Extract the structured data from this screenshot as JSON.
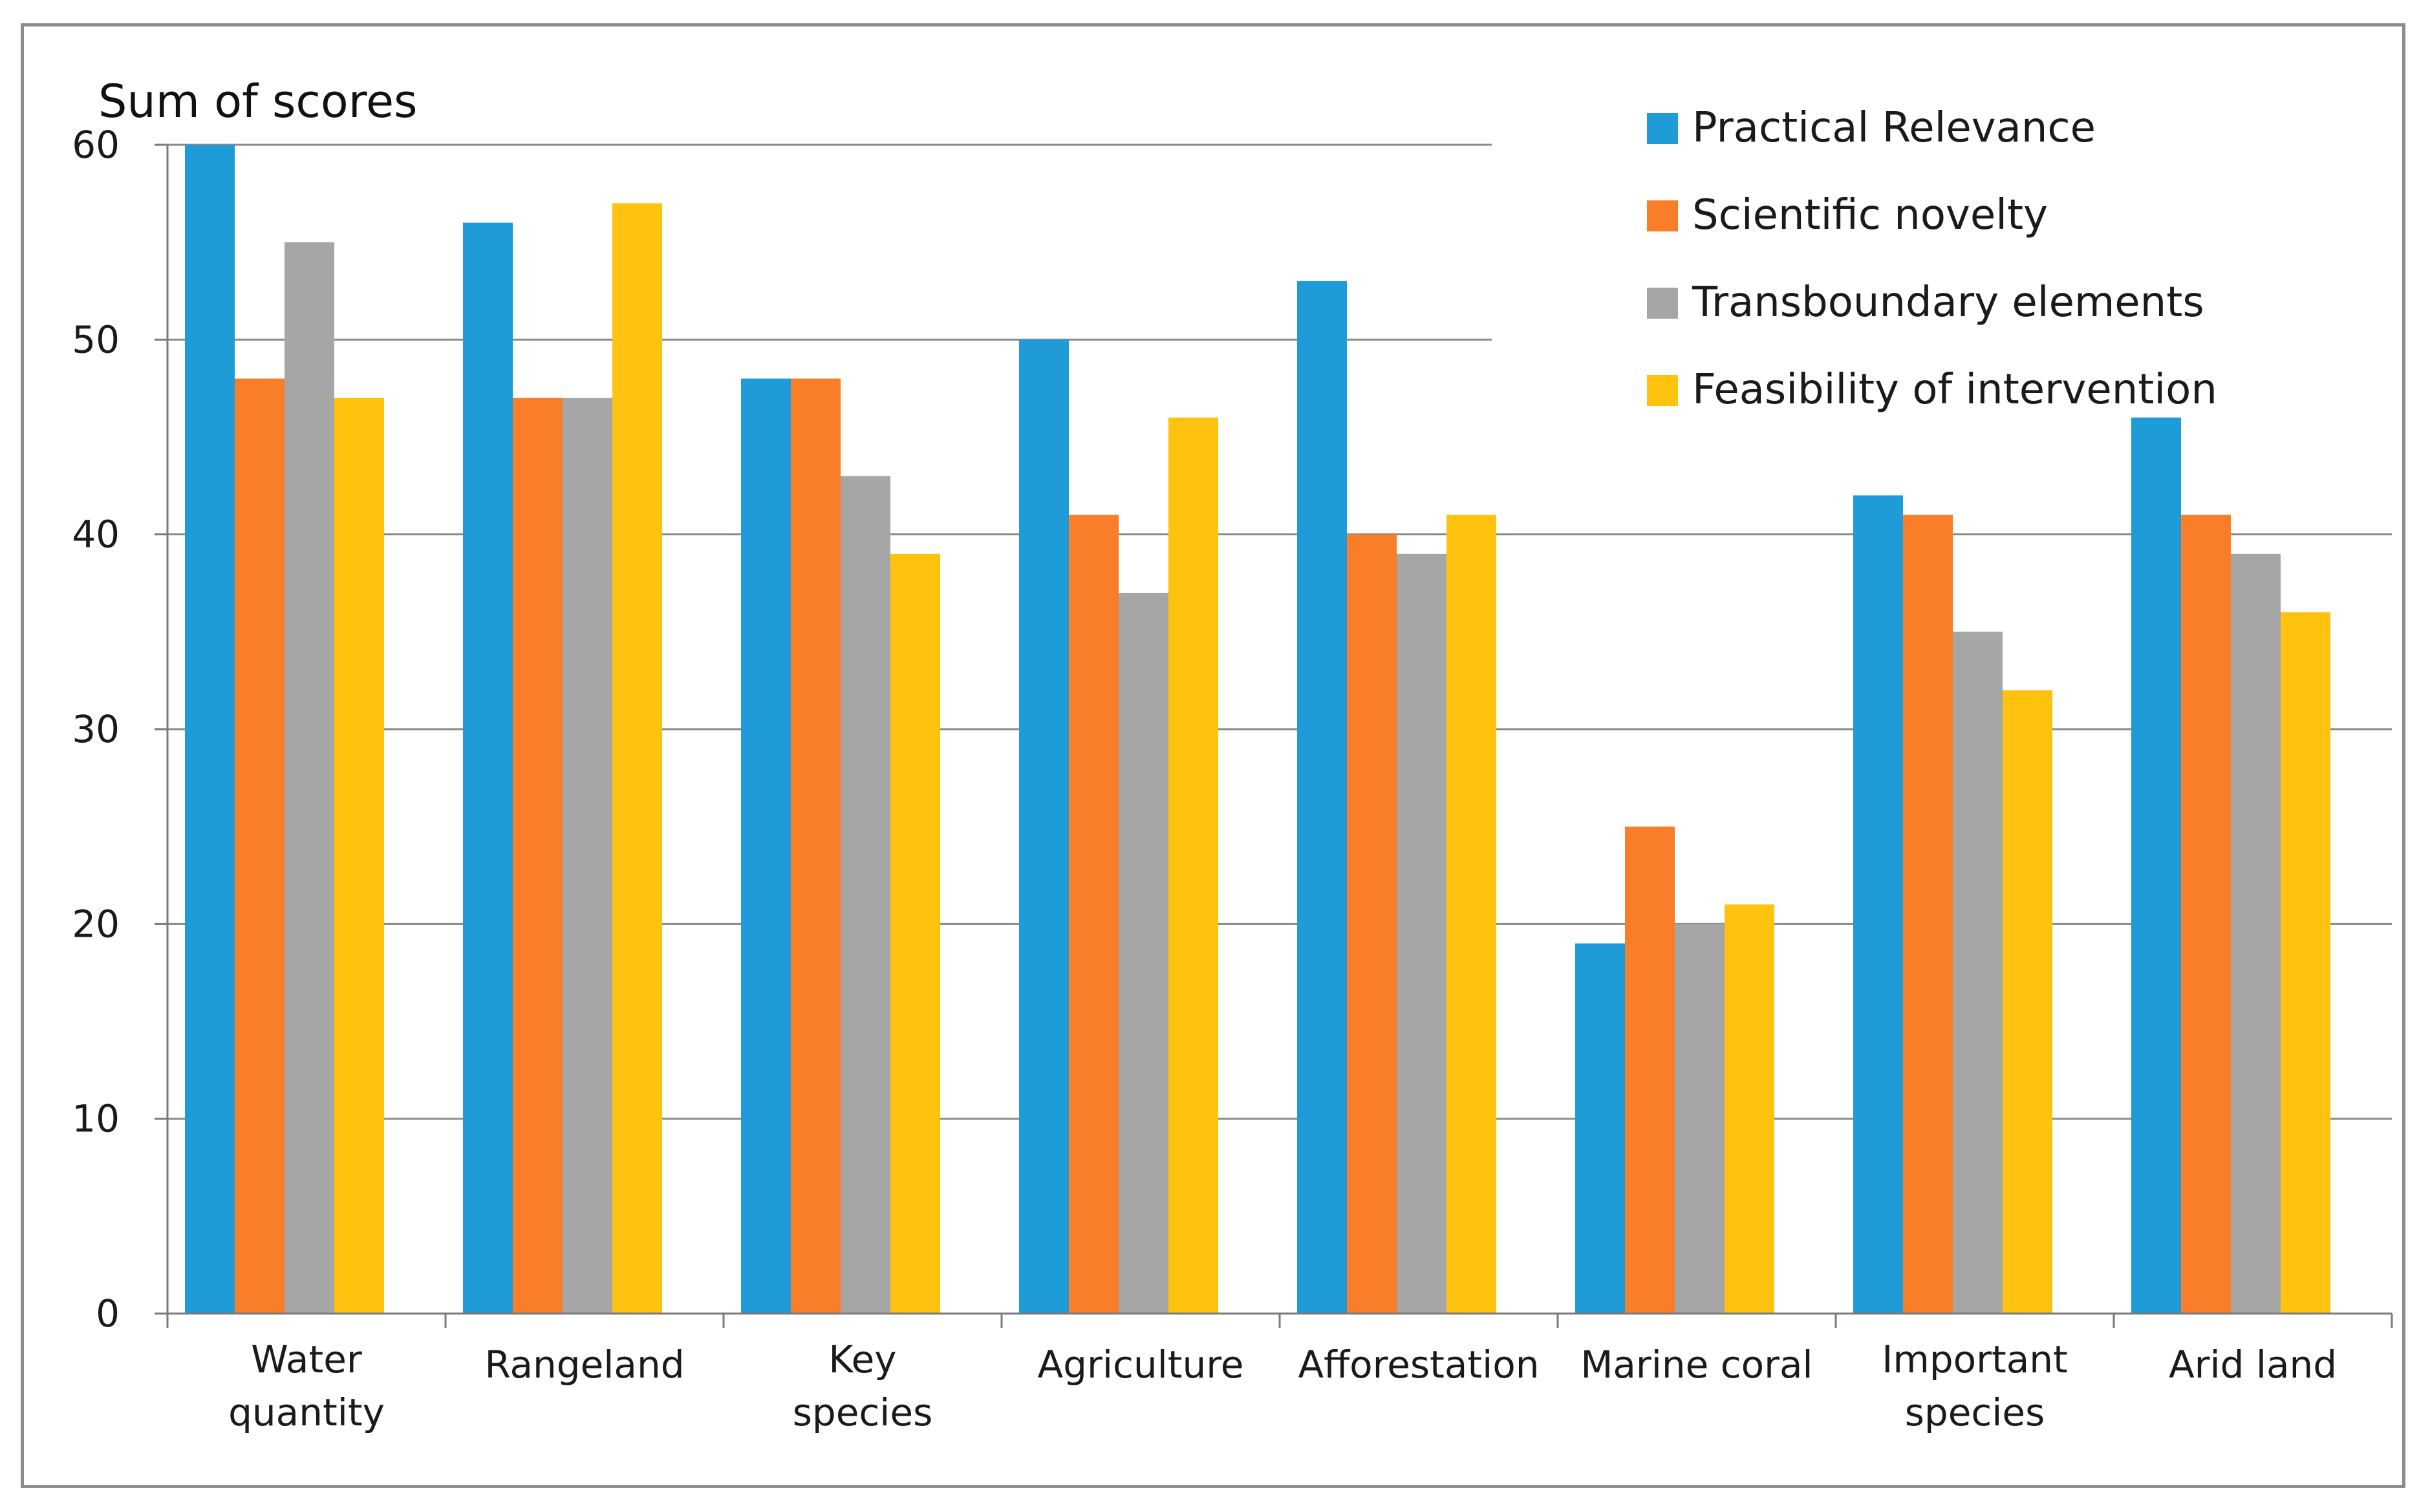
{
  "chart_data": {
    "type": "bar",
    "title": "",
    "xlabel": "",
    "ylabel": "Sum of scores",
    "ylim": [
      0,
      60
    ],
    "yticks": [
      0,
      10,
      20,
      30,
      40,
      50,
      60
    ],
    "grid": true,
    "legend_position": "top-right",
    "categories": [
      [
        "Water",
        "quantity"
      ],
      [
        "Rangeland"
      ],
      [
        "Key",
        "species"
      ],
      [
        "Agriculture"
      ],
      [
        "Afforestation"
      ],
      [
        "Marine coral"
      ],
      [
        "Important",
        "species"
      ],
      [
        "Arid land"
      ]
    ],
    "series": [
      {
        "name": "Practical Relevance",
        "color": "#1f9bd7",
        "values": [
          60,
          56,
          48,
          50,
          53,
          19,
          42,
          46
        ]
      },
      {
        "name": "Scientific novelty",
        "color": "#fa7d2a",
        "values": [
          48,
          47,
          48,
          41,
          40,
          25,
          41,
          41
        ]
      },
      {
        "name": "Transboundary elements",
        "color": "#a6a6a6",
        "values": [
          55,
          47,
          43,
          37,
          39,
          20,
          35,
          39
        ]
      },
      {
        "name": "Feasibility of intervention",
        "color": "#ffc20e",
        "values": [
          47,
          57,
          39,
          46,
          41,
          21,
          32,
          36
        ]
      }
    ]
  }
}
